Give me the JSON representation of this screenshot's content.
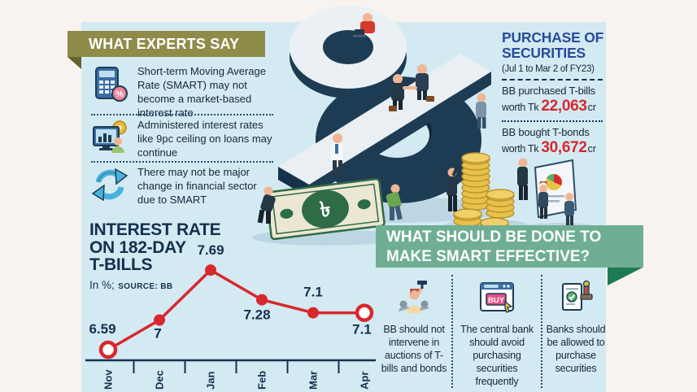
{
  "page": {
    "background": "#f8f3ef",
    "panel_color": "#d3eaf3"
  },
  "colors": {
    "accent_red": "#d7282e",
    "navy": "#14304e",
    "royal_blue": "#2a4a9a",
    "olive_banner": "#8f8c4a",
    "olive_fold": "#63632e",
    "green_banner": "#6fae93",
    "green_fold": "#1e7a50",
    "coin_gold": "#e8c04a",
    "note_green": "#2e6b47"
  },
  "experts": {
    "title": "WHAT EXPERTS SAY",
    "items": [
      {
        "icon": "calculator-percent-icon",
        "text": "Short-term Moving Average Rate (SMART) may not become a market-based interest rate"
      },
      {
        "icon": "monitor-chart-gear-icon",
        "text": "Administered interest rates like 9pc ceiling on loans may continue"
      },
      {
        "icon": "refresh-arrows-icon",
        "text": "There may not be major change in financial sector due to SMART"
      }
    ]
  },
  "purchase": {
    "title": "PURCHASE OF SECURITIES",
    "subtitle": "(Jul 1 to Mar 2 of FY23)",
    "items": [
      {
        "line1": "BB purchased T-bills",
        "prefix": "worth Tk",
        "value": "22,063",
        "suffix": "cr"
      },
      {
        "line1": "BB bought T-bonds",
        "prefix": "worth Tk",
        "value": "30,672",
        "suffix": "cr"
      }
    ]
  },
  "chart_data": {
    "type": "line",
    "title": "INTEREST RATE ON 182-DAY T-BILLS",
    "title_lines": [
      "INTEREST RATE",
      "ON 182-DAY",
      "T-BILLS"
    ],
    "unit_note": "In %;",
    "source": "SOURCE: BB",
    "categories": [
      "Nov",
      "Dec",
      "Jan",
      "Feb",
      "Mar",
      "Apr"
    ],
    "values": [
      6.59,
      7,
      7.69,
      7.28,
      7.1,
      7.1
    ],
    "value_labels": [
      "6.59",
      "7",
      "7.69",
      "7.28",
      "7.1",
      "7.1"
    ],
    "line_color": "#d7282e",
    "label_color": "#14304e",
    "ylim": [
      6.3,
      8.0
    ],
    "grid": false,
    "legend": false,
    "endpoint_markers": "first and last points open (white fill, red ring); others filled red"
  },
  "recommendations": {
    "title_lines": [
      "WHAT SHOULD BE DONE TO",
      "MAKE SMART EFFECTIVE?"
    ],
    "items": [
      {
        "icon": "auctioneer-gavel-icon",
        "text": "BB should not intervene in auctions of T-bills and bonds"
      },
      {
        "icon": "buy-browser-icon",
        "text": "The central bank should avoid purchasing securities frequently"
      },
      {
        "icon": "approved-document-stamp-icon",
        "text": "Banks should be allowed to purchase securities"
      }
    ]
  },
  "icons": {
    "calculator_badge": "%",
    "buy_label": "BUY"
  },
  "illustration": {
    "taka_symbol": "৳"
  }
}
